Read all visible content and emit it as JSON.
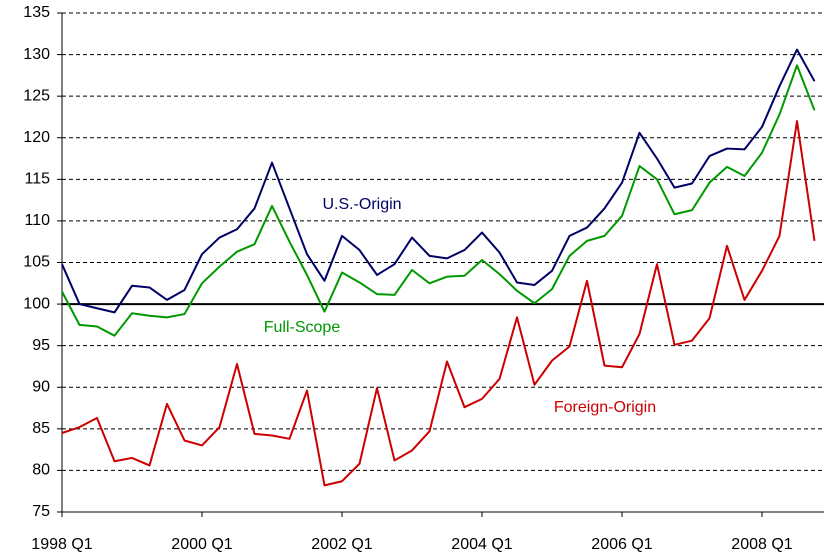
{
  "chart_data": {
    "type": "line",
    "categories": [
      "1998 Q1",
      null,
      null,
      null,
      null,
      null,
      null,
      null,
      "2000 Q1",
      null,
      null,
      null,
      null,
      null,
      null,
      null,
      "2002 Q1",
      null,
      null,
      null,
      null,
      null,
      null,
      null,
      "2004 Q1",
      null,
      null,
      null,
      null,
      null,
      null,
      null,
      "2006 Q1",
      null,
      null,
      null,
      null,
      null,
      null,
      null,
      "2008 Q1",
      null,
      null,
      null
    ],
    "series": [
      {
        "name": "U.S.-Origin",
        "color": "#000066",
        "values": [
          104.8,
          100,
          99.5,
          99,
          102.2,
          102,
          100.5,
          101.7,
          106,
          108,
          109,
          111.5,
          117,
          111.5,
          106,
          102.8,
          108.2,
          106.5,
          103.5,
          104.8,
          108,
          105.8,
          105.5,
          106.5,
          108.6,
          106.2,
          102.6,
          102.3,
          104,
          108.2,
          109.2,
          111.5,
          114.6,
          120.6,
          117.5,
          114,
          114.5,
          117.8,
          118.7,
          118.6,
          121.3,
          126.2,
          130.6,
          126.8
        ]
      },
      {
        "name": "Full-Scope",
        "color": "#009900",
        "values": [
          101.5,
          97.5,
          97.3,
          96.2,
          98.9,
          98.6,
          98.4,
          98.8,
          102.5,
          104.5,
          106.3,
          107.2,
          111.8,
          107.5,
          103.5,
          99.1,
          103.8,
          102.6,
          101.2,
          101.1,
          104.1,
          102.5,
          103.3,
          103.4,
          105.3,
          103.6,
          101.6,
          100.1,
          101.8,
          105.8,
          107.6,
          108.2,
          110.6,
          116.6,
          115,
          110.8,
          111.3,
          114.6,
          116.5,
          115.4,
          118.2,
          122.8,
          128.7,
          123.3
        ]
      },
      {
        "name": "Foreign-Origin",
        "color": "#cc0000",
        "values": [
          84.5,
          85.2,
          86.3,
          81.1,
          81.5,
          80.6,
          88,
          83.6,
          83,
          85.2,
          92.8,
          84.4,
          84.2,
          83.8,
          89.6,
          78.2,
          78.7,
          80.8,
          89.9,
          81.2,
          82.4,
          84.7,
          93.1,
          87.6,
          88.6,
          91,
          98.4,
          90.3,
          93.2,
          94.9,
          102.8,
          92.6,
          92.4,
          96.4,
          104.8,
          95.1,
          95.6,
          98.3,
          107,
          100.5,
          104,
          108.2,
          122,
          107.6
        ]
      }
    ],
    "ylim": [
      75,
      135
    ],
    "yticks": [
      75,
      80,
      85,
      90,
      95,
      100,
      105,
      110,
      115,
      120,
      125,
      130,
      135
    ],
    "baseline": 100,
    "grid": true
  }
}
